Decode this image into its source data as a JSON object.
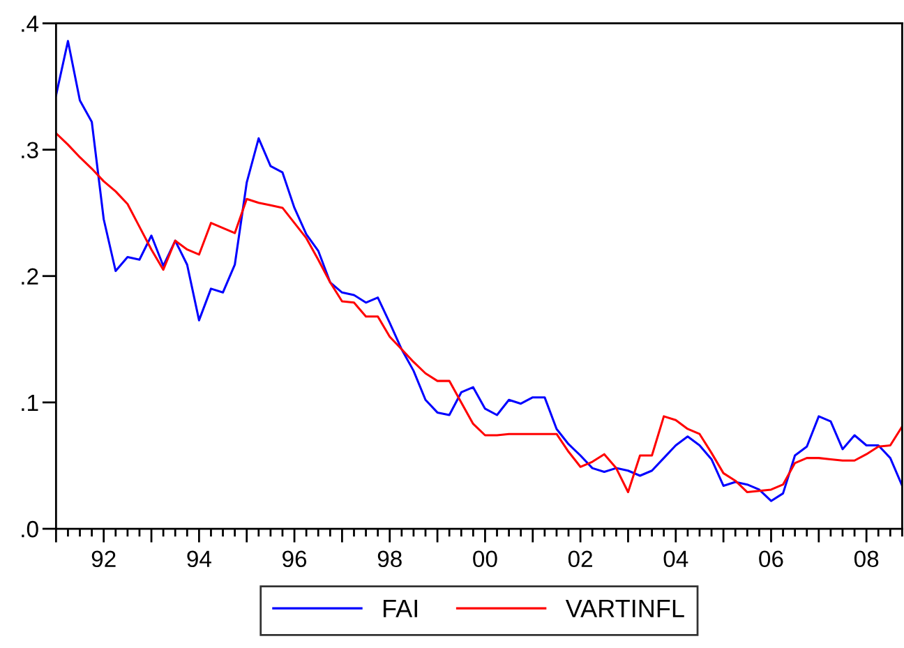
{
  "chart_data": {
    "type": "line",
    "x": [
      1991,
      1991.25,
      1991.5,
      1991.75,
      1992,
      1992.25,
      1992.5,
      1992.75,
      1993,
      1993.25,
      1993.5,
      1993.75,
      1994,
      1994.25,
      1994.5,
      1994.75,
      1995,
      1995.25,
      1995.5,
      1995.75,
      1996,
      1996.25,
      1996.5,
      1996.75,
      1997,
      1997.25,
      1997.5,
      1997.75,
      1998,
      1998.25,
      1998.5,
      1998.75,
      1999,
      1999.25,
      1999.5,
      1999.75,
      2000,
      2000.25,
      2000.5,
      2000.75,
      2001,
      2001.25,
      2001.5,
      2001.75,
      2002,
      2002.25,
      2002.5,
      2002.75,
      2003,
      2003.25,
      2003.5,
      2003.75,
      2004,
      2004.25,
      2004.5,
      2004.75,
      2005,
      2005.25,
      2005.5,
      2005.75,
      2006,
      2006.25,
      2006.5,
      2006.75,
      2007,
      2007.25,
      2007.5,
      2007.75,
      2008,
      2008.25,
      2008.5,
      2008.75
    ],
    "series": [
      {
        "name": "FAI",
        "color": "#0000ff",
        "values": [
          0.343,
          0.386,
          0.339,
          0.322,
          0.245,
          0.204,
          0.215,
          0.213,
          0.232,
          0.208,
          0.228,
          0.209,
          0.165,
          0.19,
          0.187,
          0.209,
          0.274,
          0.309,
          0.287,
          0.282,
          0.254,
          0.233,
          0.22,
          0.195,
          0.187,
          0.185,
          0.179,
          0.183,
          0.163,
          0.142,
          0.125,
          0.102,
          0.092,
          0.09,
          0.108,
          0.112,
          0.095,
          0.09,
          0.102,
          0.099,
          0.104,
          0.104,
          0.079,
          0.067,
          0.058,
          0.048,
          0.045,
          0.048,
          0.046,
          0.042,
          0.046,
          0.056,
          0.066,
          0.073,
          0.066,
          0.055,
          0.034,
          0.037,
          0.035,
          0.031,
          0.022,
          0.028,
          0.058,
          0.065,
          0.089,
          0.085,
          0.063,
          0.074,
          0.066,
          0.066,
          0.056,
          0.034
        ]
      },
      {
        "name": "VARTINFL",
        "color": "#ff0000",
        "values": [
          0.313,
          0.304,
          0.294,
          0.285,
          0.275,
          0.267,
          0.257,
          0.239,
          0.221,
          0.205,
          0.228,
          0.221,
          0.217,
          0.242,
          0.238,
          0.234,
          0.261,
          0.258,
          0.256,
          0.254,
          0.242,
          0.23,
          0.213,
          0.195,
          0.18,
          0.179,
          0.168,
          0.168,
          0.152,
          0.142,
          0.132,
          0.123,
          0.117,
          0.117,
          0.1,
          0.083,
          0.074,
          0.074,
          0.075,
          0.075,
          0.075,
          0.075,
          0.075,
          0.061,
          0.049,
          0.053,
          0.059,
          0.048,
          0.029,
          0.058,
          0.058,
          0.089,
          0.086,
          0.079,
          0.075,
          0.06,
          0.044,
          0.038,
          0.029,
          0.03,
          0.031,
          0.035,
          0.052,
          0.056,
          0.056,
          0.055,
          0.054,
          0.054,
          0.059,
          0.065,
          0.066,
          0.081
        ]
      }
    ],
    "xlim": [
      1991,
      2008.75
    ],
    "xticks": [
      {
        "value": 1992,
        "label": "92"
      },
      {
        "value": 1994,
        "label": "94"
      },
      {
        "value": 1996,
        "label": "96"
      },
      {
        "value": 1998,
        "label": "98"
      },
      {
        "value": 2000,
        "label": "00"
      },
      {
        "value": 2002,
        "label": "02"
      },
      {
        "value": 2004,
        "label": "04"
      },
      {
        "value": 2006,
        "label": "06"
      },
      {
        "value": 2008,
        "label": "08"
      }
    ],
    "ylim": [
      0,
      0.4
    ],
    "yticks": [
      {
        "value": 0,
        "label": ".0"
      },
      {
        "value": 0.1,
        "label": ".1"
      },
      {
        "value": 0.2,
        "label": ".2"
      },
      {
        "value": 0.3,
        "label": ".3"
      },
      {
        "value": 0.4,
        "label": ".4"
      }
    ],
    "grid": false,
    "legend": "bottom",
    "marker": "none",
    "line_style": "solid"
  }
}
